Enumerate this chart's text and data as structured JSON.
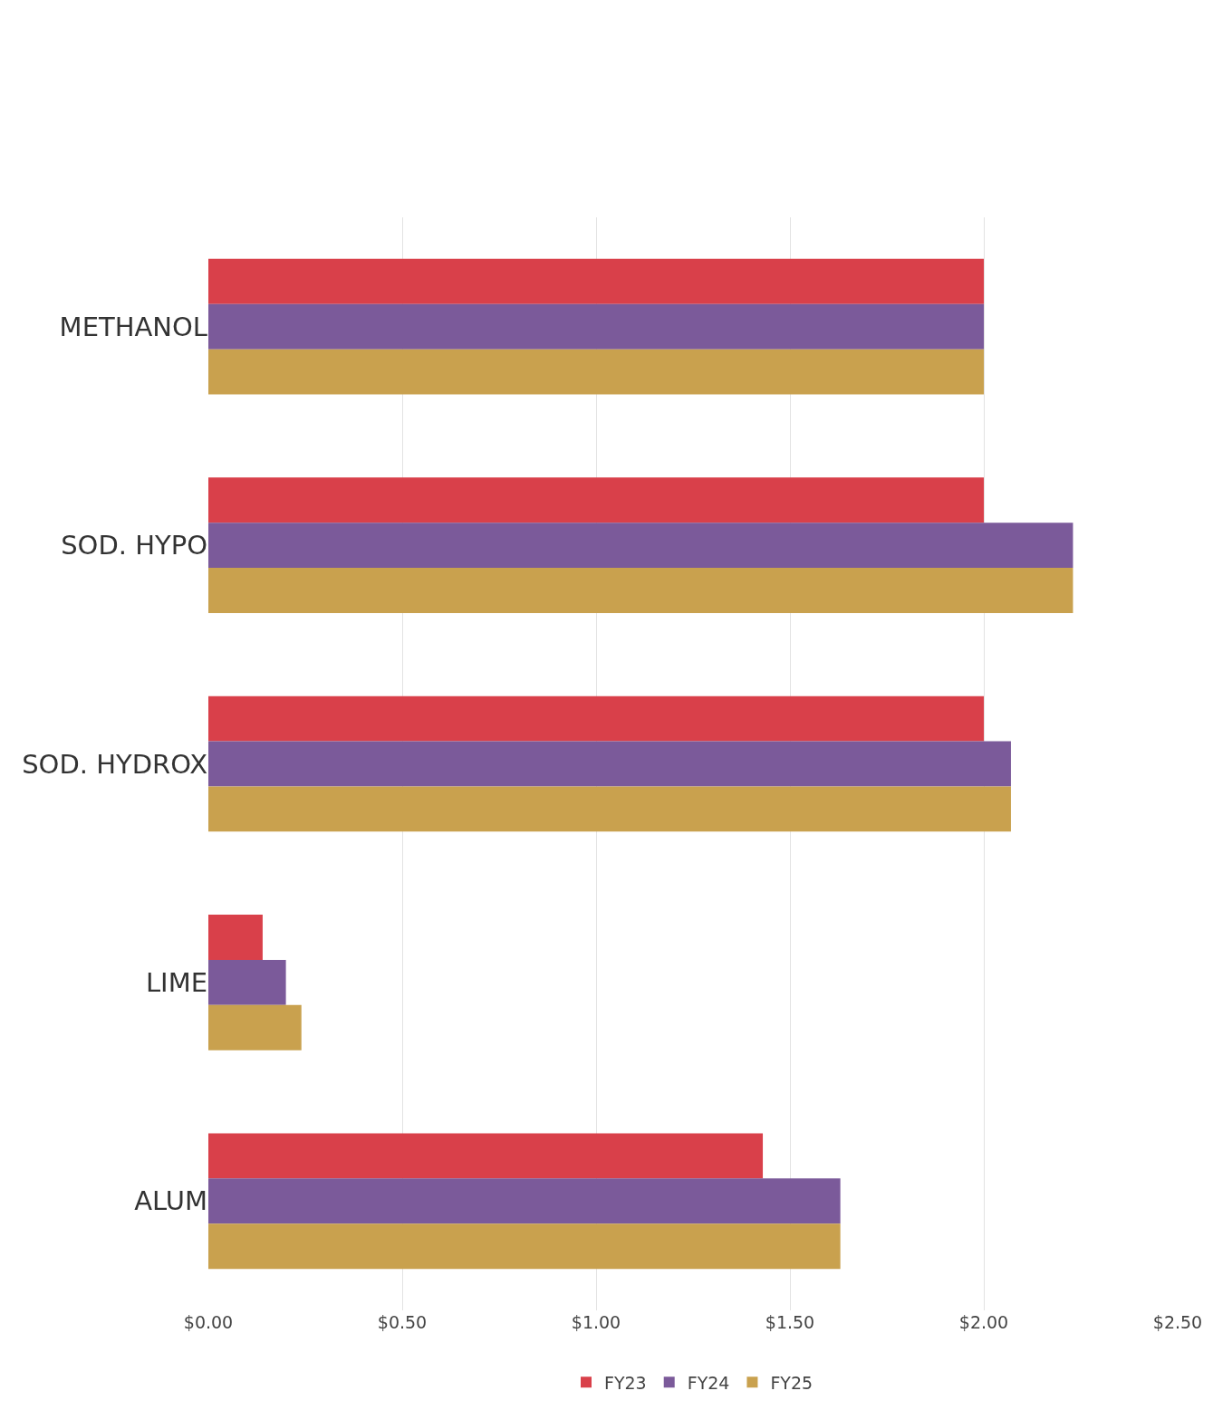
{
  "chart_data": {
    "type": "bar",
    "orientation": "horizontal",
    "categories": [
      "METHANOL",
      "SOD. HYPO",
      "SOD. HYDROX",
      "LIME",
      "ALUM"
    ],
    "series": [
      {
        "name": "FY23",
        "color": "#d9404a",
        "values": [
          2.0,
          2.0,
          2.0,
          0.14,
          1.43
        ]
      },
      {
        "name": "FY24",
        "color": "#7b5a9a",
        "values": [
          2.0,
          2.23,
          2.07,
          0.2,
          1.63
        ]
      },
      {
        "name": "FY25",
        "color": "#c9a14e",
        "values": [
          2.0,
          2.23,
          2.07,
          0.24,
          1.63
        ]
      }
    ],
    "xlim": [
      0,
      2.5
    ],
    "xticks": [
      {
        "value": 0,
        "label": "$0.00"
      },
      {
        "value": 0.5,
        "label": "$0.50"
      },
      {
        "value": 1,
        "label": "$1.00"
      },
      {
        "value": 1.5,
        "label": "$1.50"
      },
      {
        "value": 2,
        "label": "$2.00"
      },
      {
        "value": 2.5,
        "label": "$2.50"
      }
    ],
    "grid": "x",
    "legend": "bottom"
  }
}
